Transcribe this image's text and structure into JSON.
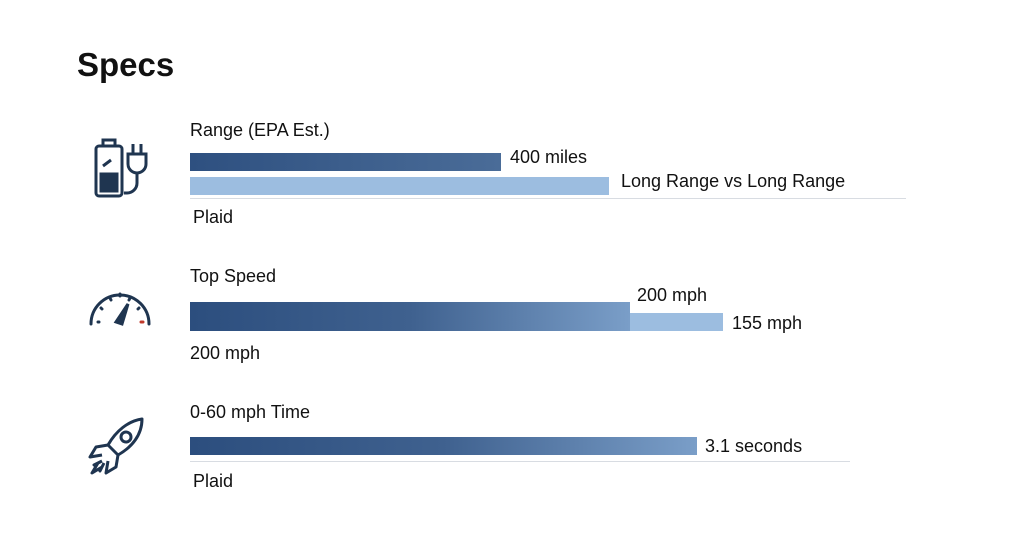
{
  "title": "Specs",
  "sections": [
    {
      "icon": "battery-plug-icon",
      "label": "Range (EPA Est.)",
      "value_primary": "400 miles",
      "value_secondary": "Long Range vs  Long Range",
      "caption": "Plaid"
    },
    {
      "icon": "speedometer-icon",
      "label": "Top Speed",
      "value_primary": "200 mph",
      "value_secondary": "155 mph",
      "caption": "200 mph"
    },
    {
      "icon": "rocket-icon",
      "label": "0-60 mph Time",
      "value_primary": "3.1 seconds",
      "caption": "Plaid"
    }
  ],
  "colors": {
    "dark_bar": "#2e5080",
    "light_bar": "#9cbde0",
    "icon": "#1f3550",
    "accent_red": "#c0392b"
  }
}
